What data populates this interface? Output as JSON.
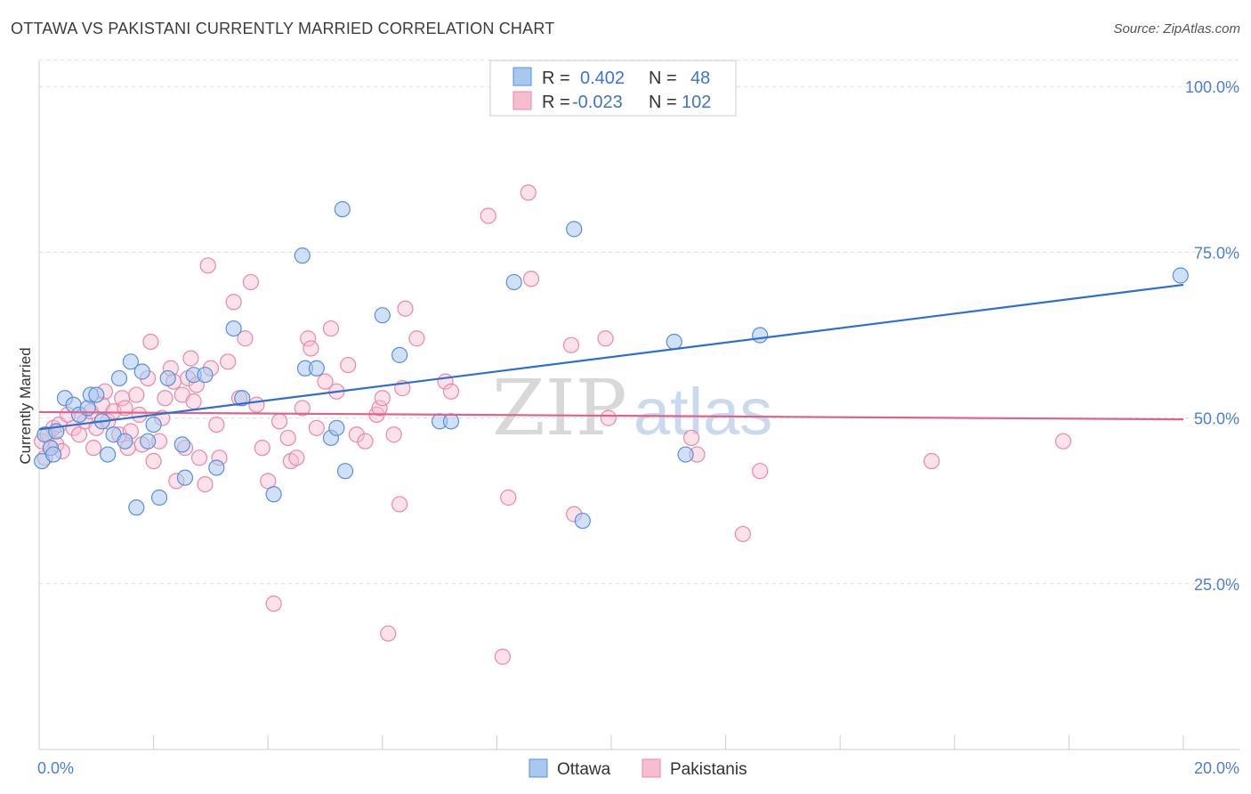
{
  "header": {
    "title": "OTTAWA VS PAKISTANI CURRENTLY MARRIED CORRELATION CHART",
    "source": "Source: ZipAtlas.com"
  },
  "watermark": {
    "zip": "ZIP",
    "atlas": "atlas"
  },
  "legend": {
    "rows": [
      {
        "r_label": "R =",
        "r_value": "0.402",
        "n_label": "N =",
        "n_value": "48"
      },
      {
        "r_label": "R =",
        "r_value": "-0.023",
        "n_label": "N =",
        "n_value": "102"
      }
    ]
  },
  "bottom_legend": {
    "items": [
      "Ottawa",
      "Pakistanis"
    ]
  },
  "colors": {
    "ottawa_fill": "#a9c8f0",
    "ottawa_stroke": "#5a8fd8",
    "ottawa_line": "#2e6fcc",
    "pak_fill": "#f7bcd0",
    "pak_stroke": "#e889a9",
    "pak_line": "#e0608e",
    "value_text": "#3f74cc",
    "label_text": "#333333"
  },
  "chart_data": {
    "type": "scatter",
    "title": "OTTAWA VS PAKISTANI CURRENTLY MARRIED CORRELATION CHART",
    "ylabel": "Currently Married",
    "xlim": [
      0,
      20
    ],
    "ylim": [
      0,
      105
    ],
    "x_tick_labels": [
      {
        "value": 0,
        "label": "0.0%"
      },
      {
        "value": 20,
        "label": "20.0%"
      }
    ],
    "y_tick_labels": [
      {
        "value": 25,
        "label": "25.0%"
      },
      {
        "value": 50,
        "label": "50.0%"
      },
      {
        "value": 75,
        "label": "75.0%"
      },
      {
        "value": 100,
        "label": "100.0%"
      }
    ],
    "grid": "horizontal dashed",
    "series": [
      {
        "name": "Ottawa",
        "R": 0.402,
        "N": 48,
        "trend": [
          [
            0,
            48.3
          ],
          [
            20,
            70.1
          ]
        ],
        "points": [
          [
            0.05,
            43.5
          ],
          [
            0.1,
            47.5
          ],
          [
            0.2,
            45.5
          ],
          [
            0.3,
            48.0
          ],
          [
            0.25,
            44.5
          ],
          [
            0.45,
            53.0
          ],
          [
            0.6,
            52.0
          ],
          [
            0.7,
            50.5
          ],
          [
            0.85,
            51.5
          ],
          [
            0.9,
            53.5
          ],
          [
            1.0,
            53.5
          ],
          [
            1.1,
            49.5
          ],
          [
            1.2,
            44.5
          ],
          [
            1.3,
            47.5
          ],
          [
            1.4,
            56.0
          ],
          [
            1.5,
            46.5
          ],
          [
            1.6,
            58.5
          ],
          [
            1.7,
            36.5
          ],
          [
            1.8,
            57.0
          ],
          [
            1.9,
            46.5
          ],
          [
            2.0,
            49.0
          ],
          [
            2.1,
            38.0
          ],
          [
            2.25,
            56.0
          ],
          [
            2.5,
            46.0
          ],
          [
            2.55,
            41.0
          ],
          [
            2.7,
            56.5
          ],
          [
            2.9,
            56.5
          ],
          [
            3.1,
            42.5
          ],
          [
            3.4,
            63.5
          ],
          [
            3.55,
            53.0
          ],
          [
            4.1,
            38.5
          ],
          [
            4.6,
            74.5
          ],
          [
            4.65,
            57.5
          ],
          [
            4.85,
            57.5
          ],
          [
            5.1,
            47.0
          ],
          [
            5.2,
            48.5
          ],
          [
            5.3,
            81.5
          ],
          [
            5.35,
            42.0
          ],
          [
            6.0,
            65.5
          ],
          [
            6.3,
            59.5
          ],
          [
            7.0,
            49.5
          ],
          [
            7.2,
            49.5
          ],
          [
            8.3,
            70.5
          ],
          [
            9.35,
            78.5
          ],
          [
            9.5,
            34.5
          ],
          [
            11.1,
            61.5
          ],
          [
            11.3,
            44.5
          ],
          [
            12.6,
            62.5
          ],
          [
            19.95,
            71.5
          ]
        ]
      },
      {
        "name": "Pakistanis",
        "R": -0.023,
        "N": 102,
        "trend": [
          [
            0,
            50.9
          ],
          [
            20,
            49.8
          ]
        ],
        "points": [
          [
            0.05,
            46.5
          ],
          [
            0.1,
            44.0
          ],
          [
            0.15,
            47.5
          ],
          [
            0.2,
            45.5
          ],
          [
            0.25,
            48.5
          ],
          [
            0.3,
            46.0
          ],
          [
            0.35,
            49.0
          ],
          [
            0.4,
            45.0
          ],
          [
            0.5,
            50.5
          ],
          [
            0.6,
            48.5
          ],
          [
            0.7,
            47.5
          ],
          [
            0.8,
            49.5
          ],
          [
            0.9,
            51.0
          ],
          [
            0.95,
            45.5
          ],
          [
            1.0,
            48.5
          ],
          [
            1.1,
            52.0
          ],
          [
            1.15,
            54.0
          ],
          [
            1.2,
            49.5
          ],
          [
            1.3,
            51.0
          ],
          [
            1.4,
            47.5
          ],
          [
            1.45,
            53.0
          ],
          [
            1.5,
            51.5
          ],
          [
            1.55,
            45.5
          ],
          [
            1.6,
            48.0
          ],
          [
            1.7,
            53.5
          ],
          [
            1.75,
            50.5
          ],
          [
            1.8,
            46.0
          ],
          [
            1.9,
            56.0
          ],
          [
            1.95,
            61.5
          ],
          [
            2.0,
            43.5
          ],
          [
            2.1,
            46.5
          ],
          [
            2.15,
            50.0
          ],
          [
            2.2,
            53.0
          ],
          [
            2.3,
            57.5
          ],
          [
            2.35,
            55.5
          ],
          [
            2.4,
            40.5
          ],
          [
            2.5,
            53.5
          ],
          [
            2.55,
            45.5
          ],
          [
            2.6,
            56.0
          ],
          [
            2.65,
            59.0
          ],
          [
            2.7,
            52.5
          ],
          [
            2.75,
            55.0
          ],
          [
            2.8,
            44.0
          ],
          [
            2.9,
            40.0
          ],
          [
            2.95,
            73.0
          ],
          [
            3.0,
            57.5
          ],
          [
            3.1,
            49.0
          ],
          [
            3.15,
            44.0
          ],
          [
            3.3,
            58.5
          ],
          [
            3.4,
            67.5
          ],
          [
            3.5,
            53.0
          ],
          [
            3.6,
            62.0
          ],
          [
            3.7,
            70.5
          ],
          [
            3.8,
            52.0
          ],
          [
            3.9,
            45.5
          ],
          [
            4.0,
            40.5
          ],
          [
            4.1,
            22.0
          ],
          [
            4.2,
            49.5
          ],
          [
            4.35,
            47.0
          ],
          [
            4.4,
            43.5
          ],
          [
            4.5,
            44.0
          ],
          [
            4.6,
            51.5
          ],
          [
            4.7,
            62.0
          ],
          [
            4.75,
            60.5
          ],
          [
            4.85,
            48.5
          ],
          [
            5.0,
            55.5
          ],
          [
            5.1,
            63.5
          ],
          [
            5.2,
            54.0
          ],
          [
            5.4,
            58.0
          ],
          [
            5.55,
            47.5
          ],
          [
            5.7,
            46.5
          ],
          [
            5.9,
            50.5
          ],
          [
            5.95,
            51.5
          ],
          [
            6.0,
            53.0
          ],
          [
            6.1,
            17.5
          ],
          [
            6.2,
            47.5
          ],
          [
            6.3,
            37.0
          ],
          [
            6.35,
            54.5
          ],
          [
            6.4,
            66.5
          ],
          [
            6.6,
            62.0
          ],
          [
            7.1,
            55.5
          ],
          [
            7.2,
            54.0
          ],
          [
            7.85,
            80.5
          ],
          [
            8.1,
            14.0
          ],
          [
            8.2,
            38.0
          ],
          [
            8.55,
            84.0
          ],
          [
            8.6,
            71.0
          ],
          [
            9.3,
            61.0
          ],
          [
            9.35,
            35.5
          ],
          [
            9.9,
            62.0
          ],
          [
            9.95,
            50.0
          ],
          [
            11.4,
            47.0
          ],
          [
            11.5,
            44.5
          ],
          [
            12.3,
            32.5
          ],
          [
            12.6,
            42.0
          ],
          [
            15.6,
            43.5
          ],
          [
            17.9,
            46.5
          ]
        ]
      }
    ]
  }
}
